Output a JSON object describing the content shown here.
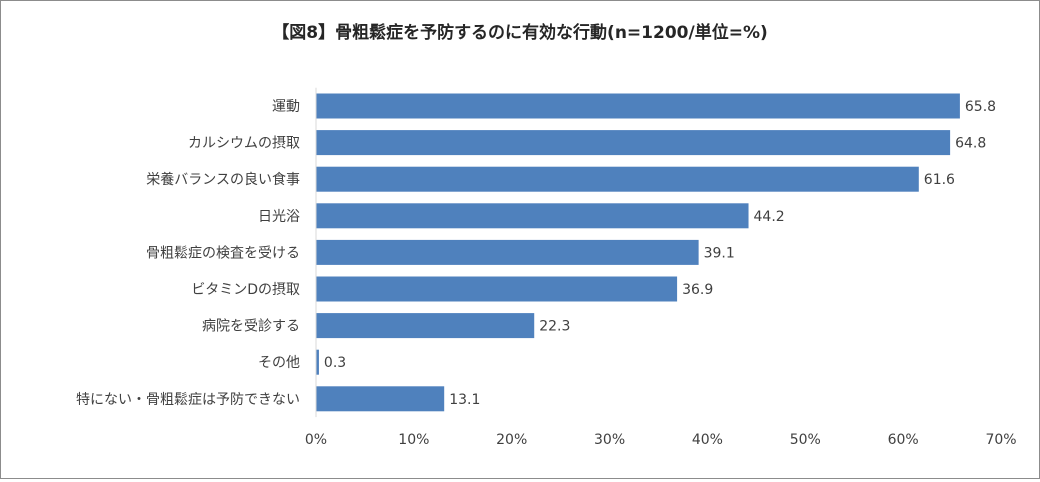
{
  "chart_data": {
    "type": "bar",
    "orientation": "horizontal",
    "title": "【図8】骨粗鬆症を予防するのに有効な行動(n=1200/単位=%)",
    "categories": [
      "運動",
      "カルシウムの摂取",
      "栄養バランスの良い食事",
      "日光浴",
      "骨粗鬆症の検査を受ける",
      "ビタミンDの摂取",
      "病院を受診する",
      "その他",
      "特にない・骨粗鬆症は予防できない"
    ],
    "values": [
      65.8,
      64.8,
      61.6,
      44.2,
      39.1,
      36.9,
      22.3,
      0.3,
      13.1
    ],
    "value_labels": [
      "65.8",
      "64.8",
      "61.6",
      "44.2",
      "39.1",
      "36.9",
      "22.3",
      "0.3",
      "13.1"
    ],
    "xlim": [
      0,
      70
    ],
    "xticks": [
      "0%",
      "10%",
      "20%",
      "30%",
      "40%",
      "50%",
      "60%",
      "70%"
    ],
    "bar_color": "#4f81bd",
    "xlabel": "",
    "ylabel": "",
    "grid": false,
    "legend": "none"
  }
}
